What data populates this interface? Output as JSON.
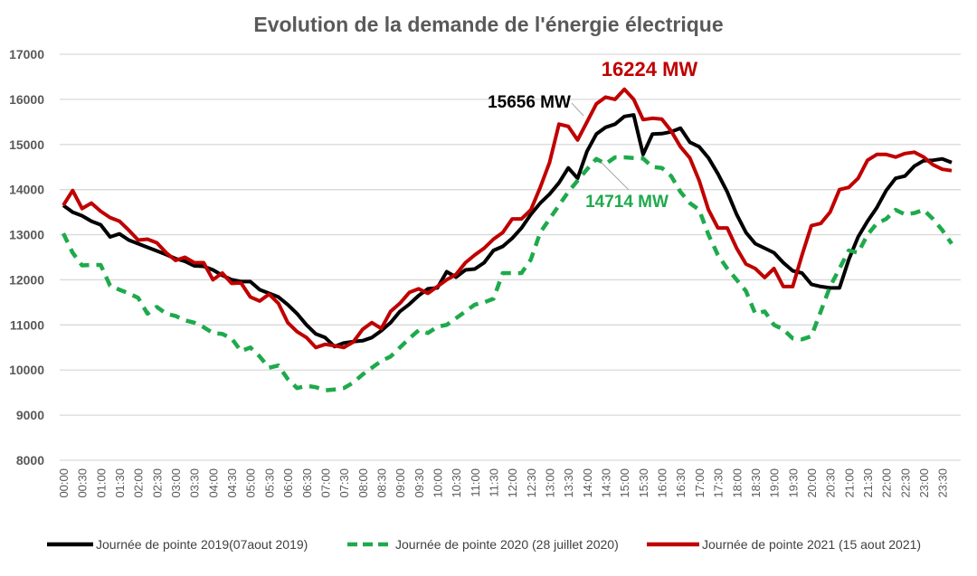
{
  "chart_data": {
    "type": "line",
    "title": "Evolution de la demande de l'énergie électrique",
    "xlabel": "",
    "ylabel": "",
    "ylim": [
      8000,
      17000
    ],
    "yticks": [
      8000,
      9000,
      10000,
      11000,
      12000,
      13000,
      14000,
      15000,
      16000,
      17000
    ],
    "grid": true,
    "legend_position": "bottom",
    "x_tick_labels": [
      "00:00",
      "00:30",
      "01:00",
      "01:30",
      "02:00",
      "02:30",
      "03:00",
      "03:30",
      "04:00",
      "04:30",
      "05:00",
      "05:30",
      "06:00",
      "06:30",
      "07:00",
      "07:30",
      "08:00",
      "08:30",
      "09:00",
      "09:30",
      "10:00",
      "10:30",
      "11:00",
      "11:30",
      "12:00",
      "12:30",
      "13:00",
      "13:30",
      "14:00",
      "14:30",
      "15:00",
      "15:30",
      "16:00",
      "16:30",
      "17:00",
      "17:30",
      "18:00",
      "18:30",
      "19:00",
      "19:30",
      "20:00",
      "20:30",
      "21:00",
      "21:30",
      "22:00",
      "22:30",
      "23:00",
      "23:30"
    ],
    "x_step_minutes": 15,
    "series": [
      {
        "name": "Journée de pointe 2019(07aout 2019)",
        "color": "#000000",
        "style": "solid",
        "values": [
          13650,
          13500,
          13420,
          13300,
          13220,
          12950,
          13020,
          12880,
          12800,
          12720,
          12640,
          12560,
          12470,
          12410,
          12310,
          12300,
          12220,
          12100,
          12000,
          11960,
          11960,
          11780,
          11700,
          11620,
          11450,
          11250,
          11000,
          10800,
          10720,
          10520,
          10600,
          10630,
          10650,
          10720,
          10870,
          11050,
          11300,
          11460,
          11650,
          11800,
          11820,
          12180,
          12060,
          12220,
          12240,
          12380,
          12650,
          12740,
          12920,
          13150,
          13450,
          13700,
          13900,
          14150,
          14480,
          14250,
          14850,
          15230,
          15380,
          15450,
          15620,
          15656,
          14780,
          15230,
          15240,
          15280,
          15360,
          15050,
          14950,
          14700,
          14350,
          13950,
          13450,
          13050,
          12800,
          12700,
          12600,
          12380,
          12200,
          12150,
          11900,
          11850,
          11820,
          11820,
          12450,
          12950,
          13300,
          13600,
          13980,
          14250,
          14300,
          14520,
          14640,
          14650,
          14680,
          14600
        ]
      },
      {
        "name": "Journée de pointe 2020 (28 juillet 2020)",
        "color": "#1eaa4b",
        "style": "dashed",
        "values": [
          13030,
          12600,
          12320,
          12330,
          12330,
          11870,
          11780,
          11700,
          11600,
          11250,
          11400,
          11250,
          11200,
          11100,
          11050,
          10950,
          10820,
          10800,
          10700,
          10420,
          10500,
          10300,
          10050,
          10100,
          9800,
          9600,
          9650,
          9620,
          9550,
          9570,
          9600,
          9720,
          9900,
          10050,
          10200,
          10300,
          10500,
          10700,
          10880,
          10820,
          10960,
          11000,
          11150,
          11300,
          11450,
          11500,
          11580,
          12150,
          12150,
          12150,
          12450,
          13050,
          13350,
          13650,
          13950,
          14200,
          14450,
          14680,
          14570,
          14714,
          14714,
          14700,
          14690,
          14500,
          14480,
          14300,
          13950,
          13700,
          13550,
          13000,
          12550,
          12250,
          12000,
          11750,
          11250,
          11300,
          11000,
          10900,
          10700,
          10680,
          10750,
          11300,
          11850,
          12250,
          12650,
          12600,
          13000,
          13250,
          13350,
          13550,
          13450,
          13480,
          13550,
          13350,
          13100,
          12800
        ]
      },
      {
        "name": "Journée de pointe 2021 (15 aout 2021)",
        "color": "#c00000",
        "style": "solid",
        "values": [
          13650,
          13980,
          13580,
          13700,
          13520,
          13380,
          13300,
          13100,
          12880,
          12900,
          12820,
          12600,
          12430,
          12500,
          12380,
          12380,
          12000,
          12150,
          11920,
          11930,
          11620,
          11530,
          11680,
          11480,
          11050,
          10850,
          10720,
          10500,
          10570,
          10540,
          10500,
          10620,
          10900,
          11050,
          10920,
          11300,
          11480,
          11720,
          11800,
          11700,
          11850,
          12000,
          12120,
          12380,
          12550,
          12700,
          12900,
          13050,
          13350,
          13350,
          13550,
          14050,
          14600,
          15450,
          15400,
          15100,
          15500,
          15900,
          16050,
          16000,
          16224,
          16000,
          15550,
          15580,
          15560,
          15300,
          14950,
          14700,
          14200,
          13550,
          13150,
          13150,
          12700,
          12350,
          12250,
          12050,
          12250,
          11850,
          11850,
          12550,
          13200,
          13250,
          13500,
          14000,
          14050,
          14250,
          14650,
          14780,
          14780,
          14720,
          14800,
          14830,
          14720,
          14550,
          14450,
          14420
        ]
      }
    ],
    "annotations": [
      {
        "text": "16224 MW",
        "series": "Journée de pointe 2021 (15 aout 2021)",
        "time": "15:00",
        "value": 16224,
        "color": "#c00000"
      },
      {
        "text": "15656 MW",
        "series": "Journée de pointe 2019(07aout 2019)",
        "time": "15:15",
        "value": 15656,
        "color": "#000000"
      },
      {
        "text": "14714 MW",
        "series": "Journée de pointe 2020 (28 juillet 2020)",
        "time": "14:45",
        "value": 14714,
        "color": "#1eaa4b"
      }
    ]
  }
}
